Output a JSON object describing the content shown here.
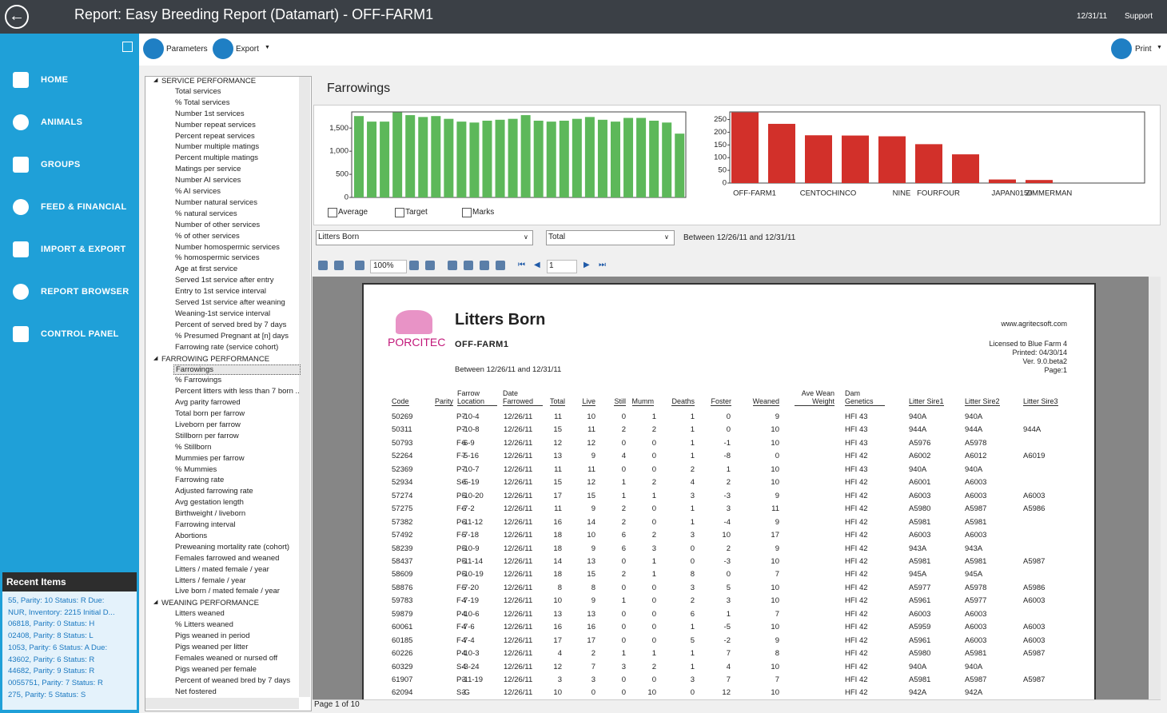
{
  "header": {
    "title": "Report: Easy Breeding Report (Datamart) - OFF-FARM1",
    "date": "12/31/11",
    "support": "Support"
  },
  "nav": [
    "HOME",
    "ANIMALS",
    "GROUPS",
    "FEED & FINANCIAL",
    "IMPORT & EXPORT",
    "REPORT BROWSER",
    "CONTROL PANEL"
  ],
  "recent": {
    "title": "Recent Items",
    "items": [
      "55, Parity: 10  Status: R Due:",
      "NUR, Inventory: 2215 Initial D...",
      "06818, Parity: 0    Status: H",
      "02408, Parity: 8    Status: L",
      "1053, Parity: 6  Status: A Due:",
      "43602, Parity: 6    Status: R",
      "44682, Parity: 9    Status: R",
      "0055751, Parity: 7    Status: R",
      "275, Parity: 5    Status: S"
    ]
  },
  "toolbar": {
    "parameters": "Parameters",
    "export": "Export",
    "print": "Print"
  },
  "tree": [
    {
      "group": "SERVICE PERFORMANCE",
      "items": [
        "Total services",
        "% Total services",
        "Number 1st services",
        "Number repeat services",
        "Percent repeat services",
        "Number multiple matings",
        "Percent multiple matings",
        "Matings per service",
        "Number AI services",
        "% AI services",
        "Number natural services",
        "% natural services",
        "Number of other services",
        "% of other services",
        "Number homospermic services",
        "% homospermic services",
        "Age at first service",
        "Served 1st service after entry",
        "Entry to 1st service interval",
        "Served 1st service after weaning",
        "Weaning-1st service interval",
        "Percent of served bred by 7 days",
        "% Presumed Pregnant at [n] days",
        "Farrowing rate (service cohort)"
      ]
    },
    {
      "group": "FARROWING PERFORMANCE",
      "items": [
        "Farrowings",
        "% Farrowings",
        "Percent litters  with less than 7 born ...",
        "Avg parity farrowed",
        "Total born per farrow",
        "Liveborn per farrow",
        "Stillborn per farrow",
        "% Stillborn",
        "Mummies per farrow",
        "% Mummies",
        "Farrowing rate",
        "Adjusted farrowing rate",
        "Avg gestation length",
        "Birthweight / liveborn",
        "Farrowing interval",
        "Abortions",
        "Preweaning mortality rate (cohort)",
        "Females farrowed and weaned",
        "Litters / mated female / year",
        "Litters / female / year",
        "Live born / mated female / year"
      ]
    },
    {
      "group": "WEANING PERFORMANCE",
      "items": [
        "Litters weaned",
        "% Litters weaned",
        "Pigs weaned in period",
        "Pigs weaned per litter",
        "Females weaned or nursed off",
        "Pigs weaned per female",
        "Percent of weaned bred by 7 days",
        "Net fostered"
      ]
    }
  ],
  "panel": {
    "title": "Farrowings"
  },
  "charts": [
    {
      "type": "bar",
      "color": "#5db85a",
      "values": [
        1760,
        1640,
        1640,
        1840,
        1780,
        1740,
        1760,
        1700,
        1640,
        1620,
        1660,
        1680,
        1700,
        1780,
        1660,
        1640,
        1660,
        1700,
        1740,
        1680,
        1640,
        1720,
        1720,
        1660,
        1620,
        1380
      ],
      "ylim": [
        0,
        1850
      ],
      "yticks": [
        0,
        500,
        {
          "value": 1000,
          "label": "1,000"
        },
        {
          "value": 1500,
          "label": "1,500"
        }
      ],
      "grid": false
    },
    {
      "type": "bar",
      "color": "#d2302a",
      "categories": [
        "OFF-FARM1",
        null,
        "CENTOCHINCO",
        null,
        "NINE",
        "FOURFOUR",
        null,
        "JAPAN0150",
        "ZIMMERMAN"
      ],
      "values": [
        278,
        233,
        188,
        187,
        184,
        153,
        113,
        14,
        12
      ],
      "ylim": [
        0,
        280
      ],
      "yticks": [
        0,
        50,
        100,
        150,
        200,
        250
      ],
      "grid": false
    }
  ],
  "options": [
    "Average",
    "Target",
    "Marks"
  ],
  "filters": {
    "measure": "Litters Born",
    "aggregate": "Total",
    "range": "Between 12/26/11 and 12/31/11"
  },
  "viewer": {
    "zoom": "100%",
    "page_input": "1",
    "status": "Page 1 of 10"
  },
  "report": {
    "logo": "PORCITEC",
    "title": "Litters Born",
    "farm": "OFF-FARM1",
    "range": "Between 12/26/11 and 12/31/11",
    "website": "www.agritecsoft.com",
    "license": [
      "Licensed to Blue Farm 4",
      "Printed: 04/30/14",
      "Ver. 9.0.beta2",
      "Page:1"
    ],
    "columns": [
      "Code",
      "Parity",
      "Farrow Location",
      "Date Farrowed",
      "Total",
      "Live",
      "Still",
      "Mumm",
      "Deaths",
      "Foster",
      "Weaned",
      "Ave Wean Weight",
      "Dam Genetics",
      "Litter Sire1",
      "Litter Sire2",
      "Litter Sire3"
    ],
    "rows": [
      [
        "50269",
        "7",
        "P-10-4",
        "12/26/11",
        "11",
        "10",
        "0",
        "1",
        "1",
        "0",
        "9",
        null,
        "HFI 43",
        "940A",
        "940A",
        null
      ],
      [
        "50311",
        "7",
        "P-10-8",
        "12/26/11",
        "15",
        "11",
        "2",
        "2",
        "1",
        "0",
        "10",
        null,
        "HFI 43",
        "944A",
        "944A",
        "944A"
      ],
      [
        "50793",
        "6",
        "F-6-9",
        "12/26/11",
        "12",
        "12",
        "0",
        "0",
        "1",
        "-1",
        "10",
        null,
        "HFI 43",
        "A5976",
        "A5978",
        null
      ],
      [
        "52264",
        "7",
        "F-5-16",
        "12/26/11",
        "13",
        "9",
        "4",
        "0",
        "1",
        "-8",
        "0",
        null,
        "HFI 42",
        "A6002",
        "A6012",
        "A6019"
      ],
      [
        "52369",
        "7",
        "P-10-7",
        "12/26/11",
        "11",
        "11",
        "0",
        "0",
        "2",
        "1",
        "10",
        null,
        "HFI 43",
        "940A",
        "940A",
        null
      ],
      [
        "52934",
        "6",
        "S-5-19",
        "12/26/11",
        "15",
        "12",
        "1",
        "2",
        "4",
        "2",
        "10",
        null,
        "HFI 42",
        "A6001",
        "A6003",
        null
      ],
      [
        "57274",
        "5",
        "P-10-20",
        "12/26/11",
        "17",
        "15",
        "1",
        "1",
        "3",
        "-3",
        "9",
        null,
        "HFI 42",
        "A6003",
        "A6003",
        "A6003"
      ],
      [
        "57275",
        "6",
        "F-7-2",
        "12/26/11",
        "11",
        "9",
        "2",
        "0",
        "1",
        "3",
        "11",
        null,
        "HFI 42",
        "A5980",
        "A5987",
        "A5986"
      ],
      [
        "57382",
        "6",
        "P-11-12",
        "12/26/11",
        "16",
        "14",
        "2",
        "0",
        "1",
        "-4",
        "9",
        null,
        "HFI 42",
        "A5981",
        "A5981",
        null
      ],
      [
        "57492",
        "5",
        "F-7-18",
        "12/26/11",
        "18",
        "10",
        "6",
        "2",
        "3",
        "10",
        "17",
        null,
        "HFI 42",
        "A6003",
        "A6003",
        null
      ],
      [
        "58239",
        "5",
        "P-10-9",
        "12/26/11",
        "18",
        "9",
        "6",
        "3",
        "0",
        "2",
        "9",
        null,
        "HFI 42",
        "943A",
        "943A",
        null
      ],
      [
        "58437",
        "5",
        "P-11-14",
        "12/26/11",
        "14",
        "13",
        "0",
        "1",
        "0",
        "-3",
        "10",
        null,
        "HFI 42",
        "A5981",
        "A5981",
        "A5987"
      ],
      [
        "58609",
        "5",
        "P-10-19",
        "12/26/11",
        "18",
        "15",
        "2",
        "1",
        "8",
        "0",
        "7",
        null,
        "HFI 42",
        "945A",
        "945A",
        null
      ],
      [
        "58876",
        "5",
        "F-7-20",
        "12/26/11",
        "8",
        "8",
        "0",
        "0",
        "3",
        "5",
        "10",
        null,
        "HFI 42",
        "A5977",
        "A5978",
        "A5986"
      ],
      [
        "59783",
        "4",
        "F-7-19",
        "12/26/11",
        "10",
        "9",
        "1",
        "0",
        "2",
        "3",
        "10",
        null,
        "HFI 42",
        "A5961",
        "A5977",
        "A6003"
      ],
      [
        "59879",
        "4",
        "P-10-6",
        "12/26/11",
        "13",
        "13",
        "0",
        "0",
        "6",
        "1",
        "7",
        null,
        "HFI 42",
        "A6003",
        "A6003",
        null
      ],
      [
        "60061",
        "4",
        "F-7-6",
        "12/26/11",
        "16",
        "16",
        "0",
        "0",
        "1",
        "-5",
        "10",
        null,
        "HFI 42",
        "A5959",
        "A6003",
        "A6003"
      ],
      [
        "60185",
        "4",
        "F-7-4",
        "12/26/11",
        "17",
        "17",
        "0",
        "0",
        "5",
        "-2",
        "9",
        null,
        "HFI 42",
        "A5961",
        "A6003",
        "A6003"
      ],
      [
        "60226",
        "4",
        "P-10-3",
        "12/26/11",
        "4",
        "2",
        "1",
        "1",
        "1",
        "7",
        "8",
        null,
        "HFI 42",
        "A5980",
        "A5981",
        "A5987"
      ],
      [
        "60329",
        "4",
        "S-3-24",
        "12/26/11",
        "12",
        "7",
        "3",
        "2",
        "1",
        "4",
        "10",
        null,
        "HFI 42",
        "940A",
        "940A",
        null
      ],
      [
        "61907",
        "3",
        "P-11-19",
        "12/26/11",
        "3",
        "3",
        "0",
        "0",
        "3",
        "7",
        "7",
        null,
        "HFI 42",
        "A5981",
        "A5987",
        "A5987"
      ],
      [
        "62094",
        "3",
        "S-G",
        "12/26/11",
        "10",
        "0",
        "0",
        "10",
        "0",
        "12",
        "10",
        null,
        "HFI 42",
        "942A",
        "942A",
        null
      ]
    ]
  }
}
